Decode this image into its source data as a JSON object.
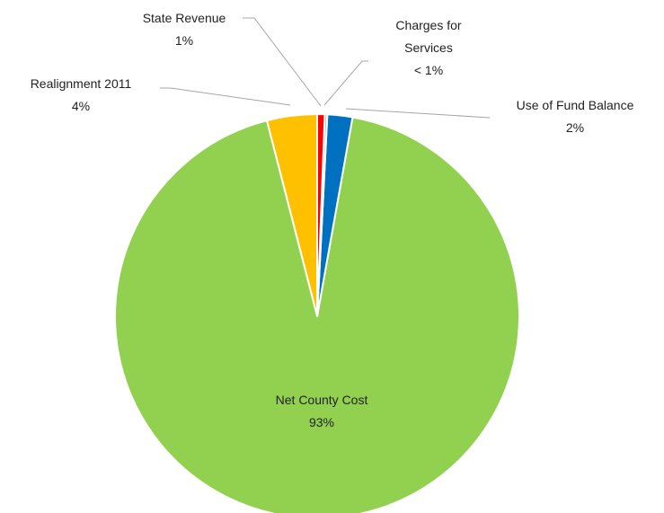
{
  "chart_data": {
    "type": "pie",
    "categories": [
      "State Revenue",
      "Charges for Services",
      "Use of Fund Balance",
      "Net County Cost",
      "Realignment 2011"
    ],
    "values": [
      0.6,
      0.2,
      2,
      93,
      4
    ],
    "value_labels": [
      "1%",
      "< 1%",
      "2%",
      "93%",
      "4%"
    ],
    "colors": [
      "#ff0000",
      "#a5a5a5",
      "#0070c0",
      "#92d050",
      "#ffc000"
    ]
  }
}
